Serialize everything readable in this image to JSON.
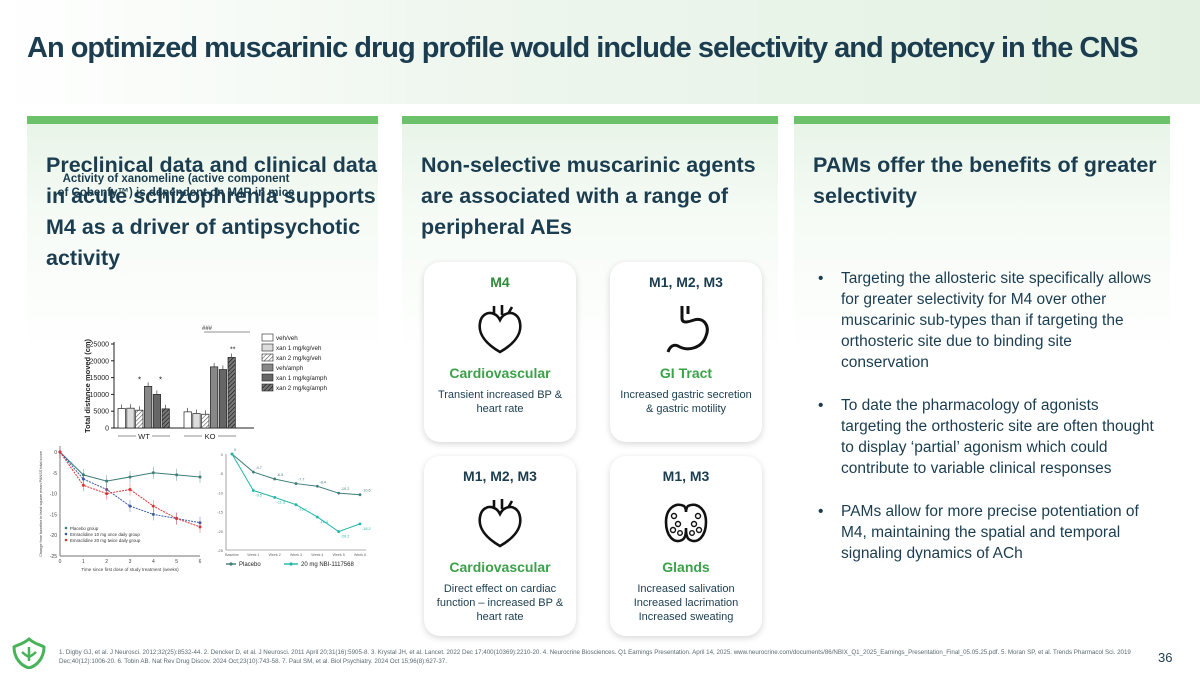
{
  "title": "An optimized muscarinic drug profile would include selectivity and potency in the CNS",
  "col1": {
    "heading": "Preclinical data and clinical data in acute schizophrenia supports M4 as a driver of antipsychotic activity",
    "chart_title": "Activity of xanomeline (active component of Cobenfy™) is dependent on M4R in mice"
  },
  "chart_data": [
    {
      "type": "bar",
      "title": "Activity of xanomeline (active component of Cobenfy™) is dependent on M4R in mice",
      "ylabel": "Total distance moved (cm)",
      "ylim": [
        0,
        25000
      ],
      "yticks": [
        "0",
        "5000",
        "10000",
        "15000",
        "20000",
        "25000"
      ],
      "groups": [
        "WT",
        "KO"
      ],
      "series": [
        {
          "name": "veh/veh",
          "values": [
            5800,
            4800
          ]
        },
        {
          "name": "xan 1 mg/kg/veh",
          "values": [
            5900,
            4300
          ]
        },
        {
          "name": "xan 2 mg/kg/veh",
          "values": [
            5300,
            4100
          ]
        },
        {
          "name": "veh/amph",
          "values": [
            12400,
            18200
          ]
        },
        {
          "name": "xan 1 mg/kg/amph",
          "values": [
            10000,
            17400
          ]
        },
        {
          "name": "xan 2 mg/kg/amph",
          "values": [
            5700,
            21000
          ]
        }
      ],
      "annotations": [
        "*",
        "*",
        "**",
        "###"
      ]
    },
    {
      "type": "line",
      "xlabel": "Time since first dose of study treatment (weeks)",
      "ylabel": "Change from baseline in least square mean PANSS total score",
      "x": [
        0,
        1,
        2,
        3,
        4,
        5,
        6
      ],
      "ylim": [
        -25,
        0
      ],
      "series": [
        {
          "name": "Placebo group",
          "values": [
            0,
            -5.5,
            -7,
            -6,
            -5,
            -5.5,
            -6
          ]
        },
        {
          "name": "Emraclidine 10 mg once daily group",
          "values": [
            0,
            -6.5,
            -9,
            -13,
            -15,
            -16,
            -17
          ]
        },
        {
          "name": "Emraclidine 20 mg twice daily group",
          "values": [
            0,
            -8,
            -10,
            -9,
            -13,
            -16,
            -18
          ]
        }
      ]
    },
    {
      "type": "line",
      "categories": [
        "Baseline",
        "Week 1",
        "Week 2",
        "Week 3",
        "Week 4",
        "Week 5",
        "Week 6"
      ],
      "series": [
        {
          "name": "Placebo",
          "values": [
            0,
            -4.7,
            -6.5,
            -7.7,
            -8.4,
            -10.2,
            -10.6
          ],
          "labels": [
            "0",
            "-4.7",
            "-6.5",
            "-7.7",
            "-8.4",
            "-10.2",
            "-10.6"
          ]
        },
        {
          "name": "20 mg NBI-1117568",
          "values": [
            0,
            -9.5,
            -11.3,
            -13.2,
            -16.4,
            -20.2,
            -18.2
          ],
          "labels": [
            "",
            "-9.5",
            "-11.3",
            "-13.2",
            "-16.4",
            "-20.2",
            "-18.2"
          ]
        }
      ],
      "ylim": [
        -25,
        0
      ]
    }
  ],
  "col2": {
    "heading": "Non-selective muscarinic agents are associated with a range of peripheral AEs",
    "cards": [
      {
        "header": "M4",
        "system": "Cardiovascular",
        "desc": "Transient increased BP & heart rate",
        "icon": "heart-icon"
      },
      {
        "header": "M1, M2, M3",
        "system": "GI Tract",
        "desc": "Increased gastric secretion & gastric motility",
        "icon": "stomach-icon"
      },
      {
        "header": "M1, M2, M3",
        "system": "Cardiovascular",
        "desc": "Direct effect on cardiac function – increased BP & heart rate",
        "icon": "heart-icon"
      },
      {
        "header": "M1, M3",
        "system": "Glands",
        "desc": "Increased salivation Increased lacrimation Increased sweating",
        "icon": "thyroid-gland-icon"
      }
    ]
  },
  "col3": {
    "heading": "PAMs offer the benefits of greater selectivity",
    "bullets": [
      "Targeting the allosteric site specifically allows for greater selectivity for M4 over other muscarinic sub-types than if targeting the orthosteric site due to binding site conservation",
      "To date the pharmacology of agonists targeting the orthosteric site are often thought to display ‘partial’ agonism which could contribute to variable clinical responses",
      "PAMs allow for more precise potentiation of M4, maintaining the spatial and temporal signaling dynamics of ACh"
    ]
  },
  "footnote": "1. Digby GJ, et al. J Neurosci. 2012;32(25):8532-44. 2. Dencker D, et al. J Neurosci. 2011 April 20;31(16):5905-8. 3. Krystal JH, et al. Lancet. 2022 Dec 17;400(10369):2210-20. 4. Neurocrine Biosciences. Q1 Earnings Presentation. April 14, 2025. www.neurocrine.com/documents/86/NBIX_Q1_2025_Earnings_Presentation_Final_05.05.25.pdf. 5. Moran SP, et al. Trends Pharmacol Sci. 2019 Dec;40(12):1006-20. 6. Tobin AB. Nat Rev Drug Discov. 2024 Oct;23(10):743-58. 7. Paul SM, et al. Biol Psychiatry. 2024 Oct 15;96(8):627-37.",
  "page_number": "36",
  "colors": {
    "accent_green": "#6cc26a",
    "text_navy": "#1b3d4f",
    "system_green": "#3aa247"
  }
}
